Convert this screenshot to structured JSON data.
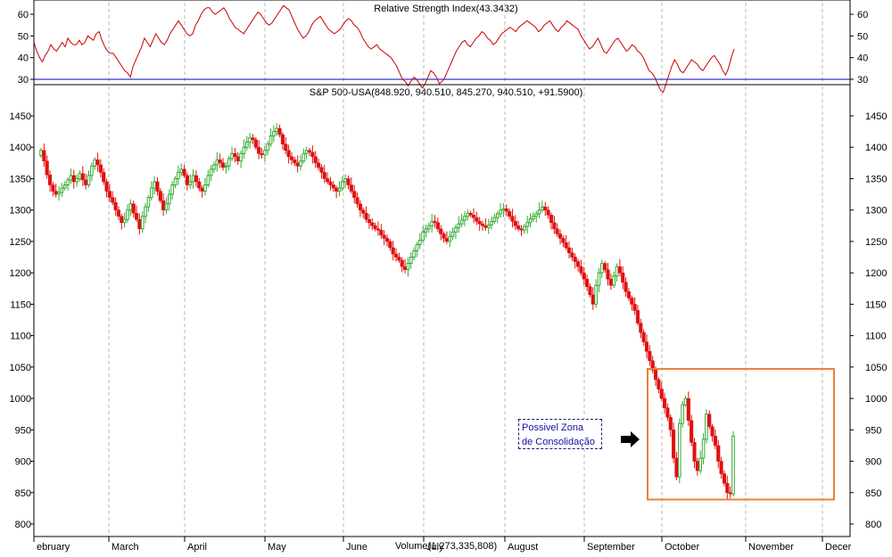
{
  "chart_data": {
    "type": "candlestick",
    "rsi_panel": {
      "title": "Relative Strength Index(43.3432)",
      "ylim": [
        20,
        70
      ],
      "yticks": [
        30,
        40,
        50,
        60
      ],
      "reference_level": 30,
      "colors": {
        "line": "#cc0000",
        "reference": "#0000cc"
      },
      "values": [
        47,
        43,
        40,
        38,
        41,
        43,
        46,
        44,
        43,
        45,
        47,
        45,
        49,
        47,
        46,
        46,
        48,
        46,
        47,
        50,
        49,
        48,
        51,
        52,
        48,
        45,
        43,
        42,
        42,
        40,
        38,
        36,
        34,
        33,
        31,
        36,
        39,
        42,
        45,
        49,
        47,
        45,
        48,
        51,
        49,
        47,
        46,
        48,
        51,
        53,
        55,
        57,
        55,
        53,
        51,
        50,
        51,
        55,
        57,
        60,
        62,
        63,
        63,
        61,
        60,
        61,
        62,
        63,
        61,
        58,
        56,
        54,
        53,
        52,
        51,
        53,
        55,
        57,
        59,
        61,
        60,
        58,
        56,
        55,
        56,
        58,
        60,
        62,
        64,
        63,
        62,
        59,
        56,
        53,
        51,
        49,
        50,
        52,
        55,
        57,
        58,
        59,
        57,
        55,
        53,
        52,
        51,
        52,
        53,
        55,
        57,
        58,
        57,
        55,
        54,
        52,
        49,
        47,
        45,
        44,
        45,
        46,
        44,
        43,
        42,
        41,
        40,
        38,
        36,
        33,
        30,
        29,
        27,
        29,
        31,
        30,
        28,
        26,
        28,
        31,
        34,
        33,
        31,
        28,
        29,
        31,
        34,
        37,
        40,
        43,
        45,
        47,
        48,
        46,
        45,
        47,
        49,
        50,
        52,
        51,
        49,
        48,
        46,
        47,
        49,
        51,
        52,
        53,
        54,
        53,
        52,
        54,
        55,
        56,
        57,
        56,
        55,
        54,
        52,
        53,
        55,
        56,
        57,
        55,
        53,
        52,
        54,
        55,
        57,
        56,
        55,
        54,
        53,
        50,
        48,
        46,
        44,
        45,
        47,
        49,
        46,
        43,
        42,
        44,
        46,
        48,
        49,
        47,
        45,
        43,
        44,
        46,
        45,
        43,
        42,
        40,
        37,
        34,
        33,
        31,
        28,
        25,
        24,
        28,
        32,
        36,
        39,
        37,
        34,
        33,
        35,
        37,
        39,
        38,
        37,
        35,
        34,
        36,
        38,
        40,
        41,
        39,
        37,
        34,
        32,
        35,
        40,
        44
      ]
    },
    "price_panel": {
      "title": "S&P 500-USA(848.920, 940.510, 845.270, 940.510, +91.5900)",
      "ylim": [
        785,
        1475
      ],
      "yticks": [
        800,
        850,
        900,
        950,
        1000,
        1050,
        1100,
        1150,
        1200,
        1250,
        1300,
        1350,
        1400,
        1450
      ],
      "xlabels": [
        "ebruary",
        "March",
        "April",
        "May",
        "June",
        "July",
        "August",
        "September",
        "October",
        "November",
        "Decer"
      ],
      "volume_label": "Volume(1,273,335,808)",
      "colors": {
        "up": "#33aa33",
        "down": "#e01010",
        "box": "#e8823a"
      },
      "highlight_box": {
        "price_high": 1047,
        "price_low": 839
      },
      "annotation": {
        "line1": "Possivel Zona",
        "line2": "de Consolidação"
      },
      "closes": [
        1395,
        1378,
        1356,
        1340,
        1330,
        1325,
        1328,
        1335,
        1340,
        1348,
        1355,
        1345,
        1350,
        1358,
        1348,
        1340,
        1355,
        1370,
        1380,
        1372,
        1360,
        1345,
        1330,
        1320,
        1312,
        1300,
        1290,
        1280,
        1285,
        1300,
        1310,
        1295,
        1285,
        1270,
        1290,
        1305,
        1320,
        1335,
        1345,
        1330,
        1315,
        1300,
        1310,
        1325,
        1340,
        1350,
        1360,
        1365,
        1355,
        1340,
        1345,
        1355,
        1345,
        1335,
        1330,
        1340,
        1355,
        1365,
        1372,
        1380,
        1375,
        1368,
        1370,
        1382,
        1390,
        1385,
        1378,
        1390,
        1400,
        1408,
        1415,
        1412,
        1400,
        1390,
        1388,
        1395,
        1405,
        1418,
        1425,
        1430,
        1420,
        1405,
        1395,
        1385,
        1380,
        1375,
        1370,
        1378,
        1390,
        1395,
        1392,
        1385,
        1375,
        1368,
        1360,
        1350,
        1345,
        1340,
        1335,
        1330,
        1335,
        1345,
        1350,
        1340,
        1330,
        1320,
        1310,
        1300,
        1295,
        1285,
        1280,
        1275,
        1270,
        1268,
        1260,
        1255,
        1250,
        1240,
        1230,
        1225,
        1220,
        1210,
        1205,
        1215,
        1225,
        1235,
        1245,
        1252,
        1265,
        1270,
        1275,
        1282,
        1280,
        1270,
        1262,
        1255,
        1250,
        1258,
        1265,
        1272,
        1278,
        1284,
        1290,
        1295,
        1292,
        1288,
        1282,
        1278,
        1275,
        1272,
        1276,
        1282,
        1288,
        1294,
        1300,
        1302,
        1298,
        1290,
        1282,
        1275,
        1270,
        1268,
        1274,
        1280,
        1286,
        1290,
        1294,
        1300,
        1305,
        1300,
        1292,
        1280,
        1270,
        1262,
        1255,
        1248,
        1240,
        1232,
        1225,
        1218,
        1210,
        1200,
        1190,
        1178,
        1165,
        1150,
        1180,
        1200,
        1215,
        1205,
        1190,
        1180,
        1195,
        1210,
        1200,
        1185,
        1170,
        1160,
        1150,
        1140,
        1120,
        1105,
        1090,
        1075,
        1060,
        1045,
        1030,
        1015,
        1000,
        985,
        970,
        950,
        905,
        875,
        960,
        990,
        1000,
        965,
        930,
        900,
        885,
        905,
        935,
        975,
        955,
        940,
        925,
        900,
        880,
        865,
        850,
        848,
        940
      ]
    }
  }
}
